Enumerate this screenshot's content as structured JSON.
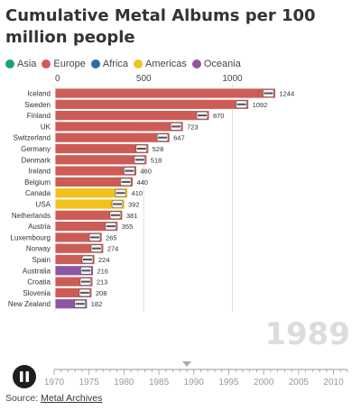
{
  "title": "Cumulative Metal Albums per 100 million people",
  "legend": [
    {
      "label": "Asia",
      "color": "#1fa07a"
    },
    {
      "label": "Europe",
      "color": "#cd5c57"
    },
    {
      "label": "Africa",
      "color": "#2c6aa8"
    },
    {
      "label": "Americas",
      "color": "#f2c21b"
    },
    {
      "label": "Oceania",
      "color": "#8e55a3"
    }
  ],
  "source": {
    "prefix": "Source: ",
    "link": "Metal Archives"
  },
  "year_label": "1989",
  "chart_data": {
    "type": "bar",
    "orientation": "horizontal",
    "categories": [
      "Iceland",
      "Sweden",
      "Finland",
      "UK",
      "Switzerland",
      "Germany",
      "Denmark",
      "Ireland",
      "Belgium",
      "Canada",
      "USA",
      "Netherlands",
      "Austria",
      "Luxembourg",
      "Norway",
      "Spain",
      "Australia",
      "Croatia",
      "Slovenia",
      "New Zealand"
    ],
    "values": [
      1244,
      1092,
      870,
      723,
      647,
      528,
      518,
      460,
      440,
      410,
      392,
      381,
      355,
      265,
      274,
      224,
      216,
      213,
      208,
      182
    ],
    "regions": [
      "Europe",
      "Europe",
      "Europe",
      "Europe",
      "Europe",
      "Europe",
      "Europe",
      "Europe",
      "Europe",
      "Americas",
      "Americas",
      "Europe",
      "Europe",
      "Europe",
      "Europe",
      "Europe",
      "Oceania",
      "Europe",
      "Europe",
      "Oceania"
    ],
    "flags": [
      "iceland-flag",
      "sweden-flag",
      "finland-flag",
      "uk-flag",
      "switzerland-flag",
      "germany-flag",
      "denmark-flag",
      "ireland-flag",
      "belgium-flag",
      "canada-flag",
      "usa-flag",
      "netherlands-flag",
      "austria-flag",
      "luxembourg-flag",
      "norway-flag",
      "spain-flag",
      "australia-flag",
      "croatia-flag",
      "slovenia-flag",
      "new-zealand-flag"
    ],
    "x_ticks": [
      0,
      500,
      1000
    ],
    "xlim": [
      0,
      1300
    ],
    "grid": true,
    "legend_position": "top-left"
  },
  "timeline": {
    "ticks": [
      "1970",
      "1975",
      "1980",
      "1985",
      "1990",
      "1995",
      "2000",
      "2005",
      "2010"
    ],
    "start": 1970,
    "end": 2012,
    "current": 1989
  },
  "play_button": {
    "icon": "pause-icon"
  }
}
